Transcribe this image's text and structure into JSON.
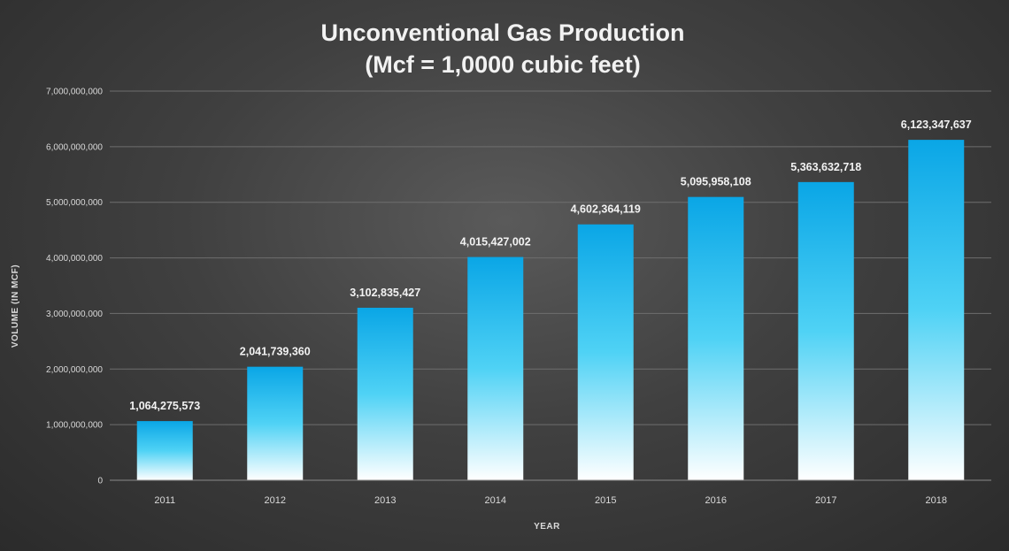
{
  "chart_data": {
    "type": "bar",
    "title": "Unconventional Gas Production",
    "subtitle": "(Mcf = 1,0000 cubic feet)",
    "xlabel": "YEAR",
    "ylabel": "VOLUME (IN MCF)",
    "categories": [
      "2011",
      "2012",
      "2013",
      "2014",
      "2015",
      "2016",
      "2017",
      "2018"
    ],
    "values": [
      1064275573,
      2041739360,
      3102835427,
      4015427002,
      4602364119,
      5095958108,
      5363632718,
      6123347637
    ],
    "data_labels": [
      "1,064,275,573",
      "2,041,739,360",
      "3,102,835,427",
      "4,015,427,002",
      "4,602,364,119",
      "5,095,958,108",
      "5,363,632,718",
      "6,123,347,637"
    ],
    "yticks": [
      0,
      1000000000,
      2000000000,
      3000000000,
      4000000000,
      5000000000,
      6000000000,
      7000000000
    ],
    "ytick_labels": [
      "0",
      "1,000,000,000",
      "2,000,000,000",
      "3,000,000,000",
      "4,000,000,000",
      "5,000,000,000",
      "6,000,000,000",
      "7,000,000,000"
    ],
    "ylim": [
      0,
      7000000000
    ],
    "grid": true,
    "legend": "none",
    "colors": {
      "bar_top": "#0aa6e6",
      "bar_mid": "#4fd2f5",
      "bar_bottom": "#ffffff",
      "background": "#3c3c3c"
    }
  }
}
